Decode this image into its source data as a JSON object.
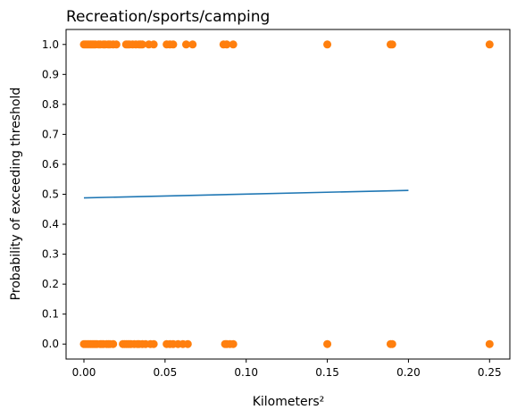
{
  "chart_data": {
    "type": "scatter",
    "title": "Recreation/sports/camping",
    "xlabel": "Kilometers²",
    "ylabel": "Probability of exceeding threshold",
    "xlim": [
      -0.011,
      0.2625
    ],
    "ylim": [
      -0.05,
      1.05
    ],
    "xticks": [
      0.0,
      0.05,
      0.1,
      0.15,
      0.2,
      0.25
    ],
    "xtick_labels": [
      "0.00",
      "0.05",
      "0.10",
      "0.15",
      "0.20",
      "0.25"
    ],
    "yticks": [
      0.0,
      0.1,
      0.2,
      0.3,
      0.4,
      0.5,
      0.6,
      0.7,
      0.8,
      0.9,
      1.0
    ],
    "ytick_labels": [
      "0.0",
      "0.1",
      "0.2",
      "0.3",
      "0.4",
      "0.5",
      "0.6",
      "0.7",
      "0.8",
      "0.9",
      "1.0"
    ],
    "grid": false,
    "colors": {
      "points": "#ff7f0e",
      "line": "#1f77b4"
    },
    "points_y1": [
      0.0,
      0.001,
      0.002,
      0.003,
      0.004,
      0.005,
      0.006,
      0.007,
      0.009,
      0.01,
      0.012,
      0.013,
      0.015,
      0.016,
      0.018,
      0.02,
      0.026,
      0.027,
      0.028,
      0.03,
      0.032,
      0.034,
      0.035,
      0.036,
      0.04,
      0.043,
      0.051,
      0.053,
      0.055,
      0.063,
      0.067,
      0.086,
      0.088,
      0.092,
      0.15,
      0.189,
      0.19,
      0.25
    ],
    "points_y0": [
      0.0,
      0.001,
      0.002,
      0.003,
      0.004,
      0.005,
      0.006,
      0.007,
      0.008,
      0.01,
      0.011,
      0.012,
      0.014,
      0.015,
      0.016,
      0.018,
      0.024,
      0.025,
      0.026,
      0.027,
      0.028,
      0.029,
      0.031,
      0.033,
      0.034,
      0.036,
      0.038,
      0.041,
      0.043,
      0.051,
      0.053,
      0.055,
      0.058,
      0.061,
      0.064,
      0.087,
      0.088,
      0.09,
      0.092,
      0.15,
      0.189,
      0.19,
      0.25
    ],
    "fit_line": {
      "x": [
        0.0,
        0.2
      ],
      "y": [
        0.488,
        0.513
      ]
    }
  }
}
